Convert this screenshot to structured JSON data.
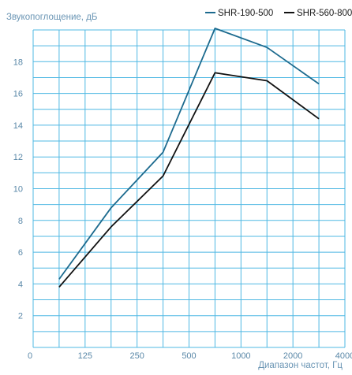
{
  "chart_data": {
    "type": "line",
    "title": "",
    "ylabel": "Звукопоглощение, дБ",
    "xlabel": "Диапазон частот, Гц",
    "x_tick_labels": [
      "0",
      "125",
      "250",
      "500",
      "1000",
      "2000",
      "4000"
    ],
    "y_ticks": [
      2,
      4,
      6,
      8,
      10,
      12,
      14,
      16,
      18
    ],
    "ylim": [
      0,
      20
    ],
    "grid": true,
    "legend_position": "top-right",
    "categories": [
      "125",
      "250",
      "500",
      "1000",
      "2000",
      "4000"
    ],
    "series": [
      {
        "name": "SHR-190-500",
        "color": "#1c6a8e",
        "values": [
          4.3,
          8.8,
          12.3,
          20.1,
          18.9,
          16.6
        ]
      },
      {
        "name": "SHR-560-800",
        "color": "#111111",
        "values": [
          3.8,
          7.6,
          10.8,
          17.3,
          16.8,
          14.4
        ]
      }
    ],
    "colors": {
      "grid": "#4fb8e3",
      "tick_text": "#5a88a8"
    }
  }
}
